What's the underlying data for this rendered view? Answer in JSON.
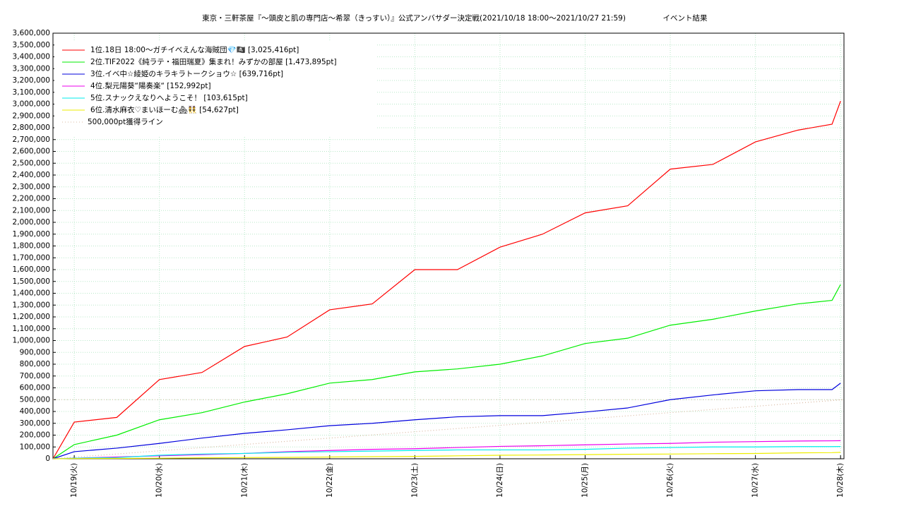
{
  "chart_data": {
    "type": "line",
    "title": "東京・三軒茶屋『～頭皮と肌の専門店～希翠（きっすい）』公式アンバサダー決定戦(2021/10/18 18:00～2021/10/27 21:59)",
    "subtitle": "イベント結果",
    "x": [
      18.75,
      19,
      19.5,
      20,
      20.5,
      21,
      21.5,
      22,
      22.5,
      23,
      23.5,
      24,
      24.5,
      25,
      25.5,
      26,
      26.5,
      27,
      27.5,
      27.9,
      28.0
    ],
    "xlim": [
      18.75,
      28.04
    ],
    "xticks": [
      {
        "value": 19,
        "label": "10/19(火)"
      },
      {
        "value": 20,
        "label": "10/20(水)"
      },
      {
        "value": 21,
        "label": "10/21(木)"
      },
      {
        "value": 22,
        "label": "10/22(金)"
      },
      {
        "value": 23,
        "label": "10/23(土)"
      },
      {
        "value": 24,
        "label": "10/24(日)"
      },
      {
        "value": 25,
        "label": "10/25(月)"
      },
      {
        "value": 26,
        "label": "10/26(火)"
      },
      {
        "value": 27,
        "label": "10/27(水)"
      },
      {
        "value": 28,
        "label": "10/28(木)"
      }
    ],
    "ylim": [
      0,
      3600000
    ],
    "yticks": [
      {
        "value": 0,
        "label": "0"
      },
      {
        "value": 100000,
        "label": "100,000"
      },
      {
        "value": 200000,
        "label": "200,000"
      },
      {
        "value": 300000,
        "label": "300,000"
      },
      {
        "value": 400000,
        "label": "400,000"
      },
      {
        "value": 500000,
        "label": "500,000"
      },
      {
        "value": 600000,
        "label": "600,000"
      },
      {
        "value": 700000,
        "label": "700,000"
      },
      {
        "value": 800000,
        "label": "800,000"
      },
      {
        "value": 900000,
        "label": "900,000"
      },
      {
        "value": 1000000,
        "label": "1,000,000"
      },
      {
        "value": 1100000,
        "label": "1,100,000"
      },
      {
        "value": 1200000,
        "label": "1,200,000"
      },
      {
        "value": 1300000,
        "label": "1,300,000"
      },
      {
        "value": 1400000,
        "label": "1,400,000"
      },
      {
        "value": 1500000,
        "label": "1,500,000"
      },
      {
        "value": 1600000,
        "label": "1,600,000"
      },
      {
        "value": 1700000,
        "label": "1,700,000"
      },
      {
        "value": 1800000,
        "label": "1,800,000"
      },
      {
        "value": 1900000,
        "label": "1,900,000"
      },
      {
        "value": 2000000,
        "label": "2,000,000"
      },
      {
        "value": 2100000,
        "label": "2,100,000"
      },
      {
        "value": 2200000,
        "label": "2,200,000"
      },
      {
        "value": 2300000,
        "label": "2,300,000"
      },
      {
        "value": 2400000,
        "label": "2,400,000"
      },
      {
        "value": 2500000,
        "label": "2,500,000"
      },
      {
        "value": 2600000,
        "label": "2,600,000"
      },
      {
        "value": 2700000,
        "label": "2,700,000"
      },
      {
        "value": 2800000,
        "label": "2,800,000"
      },
      {
        "value": 2900000,
        "label": "2,900,000"
      },
      {
        "value": 3000000,
        "label": "3,000,000"
      },
      {
        "value": 3100000,
        "label": "3,100,000"
      },
      {
        "value": 3200000,
        "label": "3,200,000"
      },
      {
        "value": 3300000,
        "label": "3,300,000"
      },
      {
        "value": 3400000,
        "label": "3,400,000"
      },
      {
        "value": 3500000,
        "label": "3,500,000"
      },
      {
        "value": 3600000,
        "label": "3,600,000"
      }
    ],
    "grid": true,
    "legend": "upper left",
    "reference_line": 500000,
    "series": [
      {
        "name": "1位.18日 18:00〜ガチイべえんな海賊団💎🏴‍☠️ [3,025,416pt]",
        "color": "#ff0000",
        "values": [
          0,
          310000,
          350000,
          670000,
          730000,
          950000,
          1030000,
          1260000,
          1310000,
          1600000,
          1600000,
          1790000,
          1900000,
          2080000,
          2140000,
          2450000,
          2490000,
          2680000,
          2780000,
          2830000,
          3025416
        ]
      },
      {
        "name": "2位.TIF2022《純ラテ・福田瑞夏》集まれ！みずかの部屋 [1,473,895pt]",
        "color": "#00ee00",
        "values": [
          0,
          120000,
          200000,
          330000,
          390000,
          480000,
          550000,
          640000,
          670000,
          735000,
          760000,
          800000,
          870000,
          975000,
          1020000,
          1130000,
          1180000,
          1250000,
          1310000,
          1340000,
          1473895
        ]
      },
      {
        "name": "3位.イベ中☆綾姫のキラキラトークショウ☆ [639,716pt]",
        "color": "#0000dd",
        "values": [
          0,
          60000,
          90000,
          130000,
          175000,
          215000,
          245000,
          280000,
          300000,
          330000,
          355000,
          365000,
          365000,
          395000,
          430000,
          500000,
          540000,
          575000,
          585000,
          585000,
          639716
        ]
      },
      {
        "name": "4位.梨元陽葵“陽奏楽“ [152,992pt]",
        "color": "#ee00ee",
        "values": [
          0,
          5000,
          15000,
          25000,
          35000,
          45000,
          60000,
          70000,
          80000,
          85000,
          95000,
          105000,
          110000,
          118000,
          125000,
          130000,
          140000,
          145000,
          150000,
          152000,
          152992
        ]
      },
      {
        "name": "5位.スナックえなりへようこそ！ [103,615pt]",
        "color": "#00eeee",
        "values": [
          0,
          5000,
          10000,
          30000,
          40000,
          45000,
          55000,
          60000,
          65000,
          70000,
          75000,
          75000,
          75000,
          80000,
          90000,
          95000,
          100000,
          100000,
          103000,
          103000,
          103615
        ]
      },
      {
        "name": "6位.清水麻衣♡まいほーむ🏘👯 [54,627pt]",
        "color": "#eeee00",
        "values": [
          0,
          2000,
          3000,
          5000,
          8000,
          10000,
          12000,
          15000,
          18000,
          20000,
          25000,
          30000,
          32000,
          35000,
          38000,
          40000,
          43000,
          45000,
          50000,
          52000,
          54627
        ]
      },
      {
        "name": "500,000pt獲得ライン",
        "color": "#d8b8a0",
        "dotted": true,
        "x": [
          18.75,
          28.04
        ],
        "values": [
          0,
          500000
        ]
      }
    ]
  }
}
